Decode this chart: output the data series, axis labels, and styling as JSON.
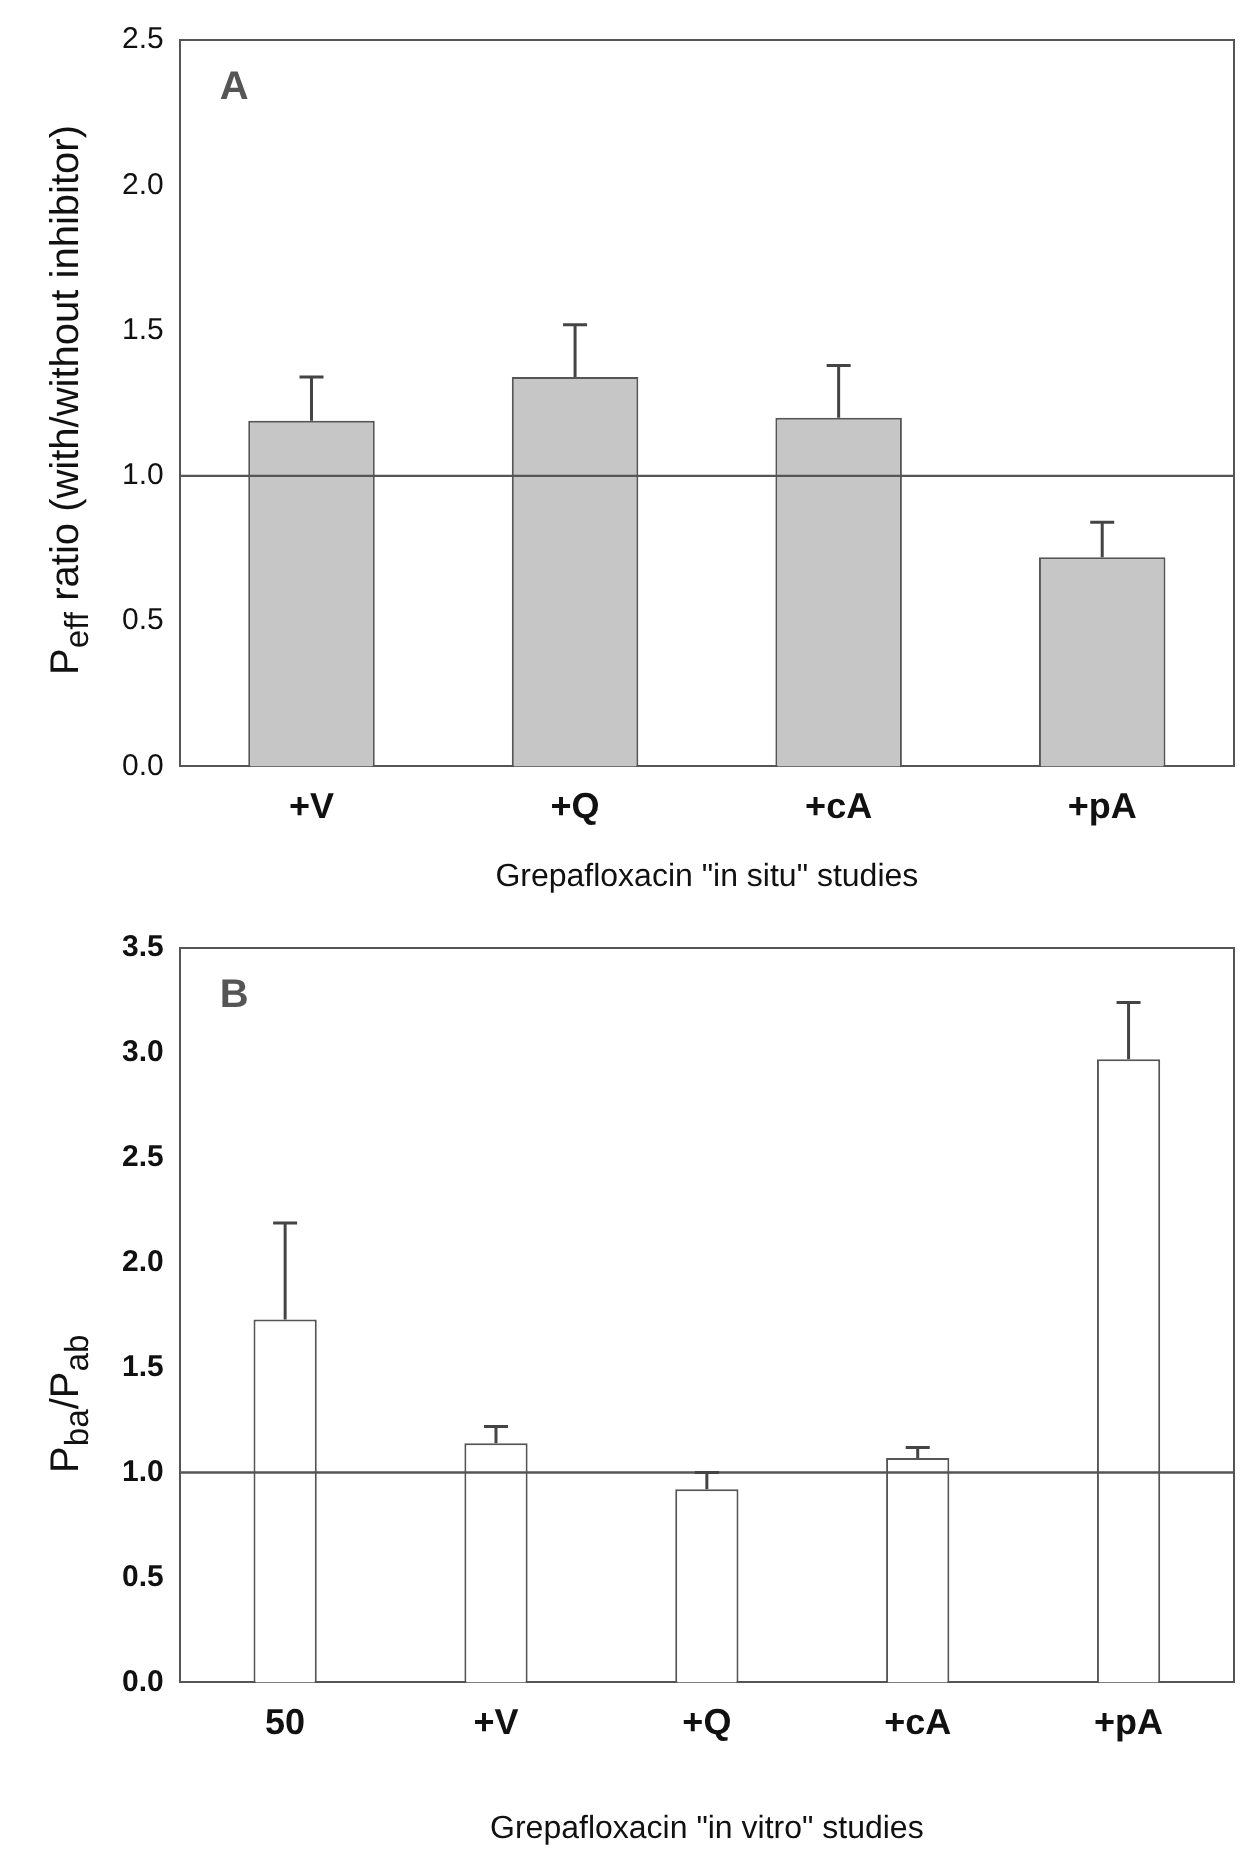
{
  "chart_data": [
    {
      "type": "bar",
      "xlabel": "Grepafloxacin \"in situ\" studies",
      "ylabel": "P$_{eff}$ ratio (with/without inhibitor)",
      "categories": [
        "+V",
        "+Q",
        "+cA",
        "+pA"
      ],
      "values": [
        1.19,
        1.34,
        1.2,
        0.72
      ],
      "errors": [
        [
          1.19,
          1.34
        ],
        [
          1.34,
          1.52
        ],
        [
          1.2,
          1.38
        ],
        [
          0.72,
          0.84
        ]
      ],
      "color": "#c6c6c6",
      "ylim": [
        0,
        2.5
      ],
      "yticks": [
        {
          "value": 0,
          "label": "0.0"
        },
        {
          "value": 0.5,
          "label": "0.5"
        },
        {
          "value": 1,
          "label": "1.0"
        },
        {
          "value": 1.5,
          "label": "1.5"
        },
        {
          "value": 2,
          "label": "2.0"
        },
        {
          "value": 2.5,
          "label": "2.5"
        }
      ],
      "ref_lines": [
        {
          "axis": "y",
          "value": 1
        }
      ],
      "annotations": [
        "A"
      ],
      "grid": false,
      "legend": false
    },
    {
      "type": "bar",
      "xlabel": "Grepafloxacin \"in vitro\" studies",
      "ylabel": "P$_{ba}$/P$_{ab}$",
      "categories": [
        "50",
        "+V",
        "+Q",
        "+cA",
        "+pA"
      ],
      "values": [
        1.73,
        1.14,
        0.92,
        1.07,
        2.97
      ],
      "errors": [
        [
          1.73,
          2.19
        ],
        [
          1.14,
          1.22
        ],
        [
          0.92,
          1.0
        ],
        [
          1.07,
          1.12
        ],
        [
          2.97,
          3.24
        ]
      ],
      "color": "#ffffff",
      "ylim": [
        0,
        3.5
      ],
      "yticks": [
        {
          "value": 0,
          "label": "0.0"
        },
        {
          "value": 0.5,
          "label": "0.5"
        },
        {
          "value": 1,
          "label": "1.0"
        },
        {
          "value": 1.5,
          "label": "1.5"
        },
        {
          "value": 2,
          "label": "2.0"
        },
        {
          "value": 2.5,
          "label": "2.5"
        },
        {
          "value": 3,
          "label": "3.0"
        },
        {
          "value": 3.5,
          "label": "3.5"
        }
      ],
      "ref_lines": [
        {
          "axis": "y",
          "value": 1
        }
      ],
      "annotations": [
        "B"
      ],
      "grid": false,
      "legend": false
    }
  ]
}
